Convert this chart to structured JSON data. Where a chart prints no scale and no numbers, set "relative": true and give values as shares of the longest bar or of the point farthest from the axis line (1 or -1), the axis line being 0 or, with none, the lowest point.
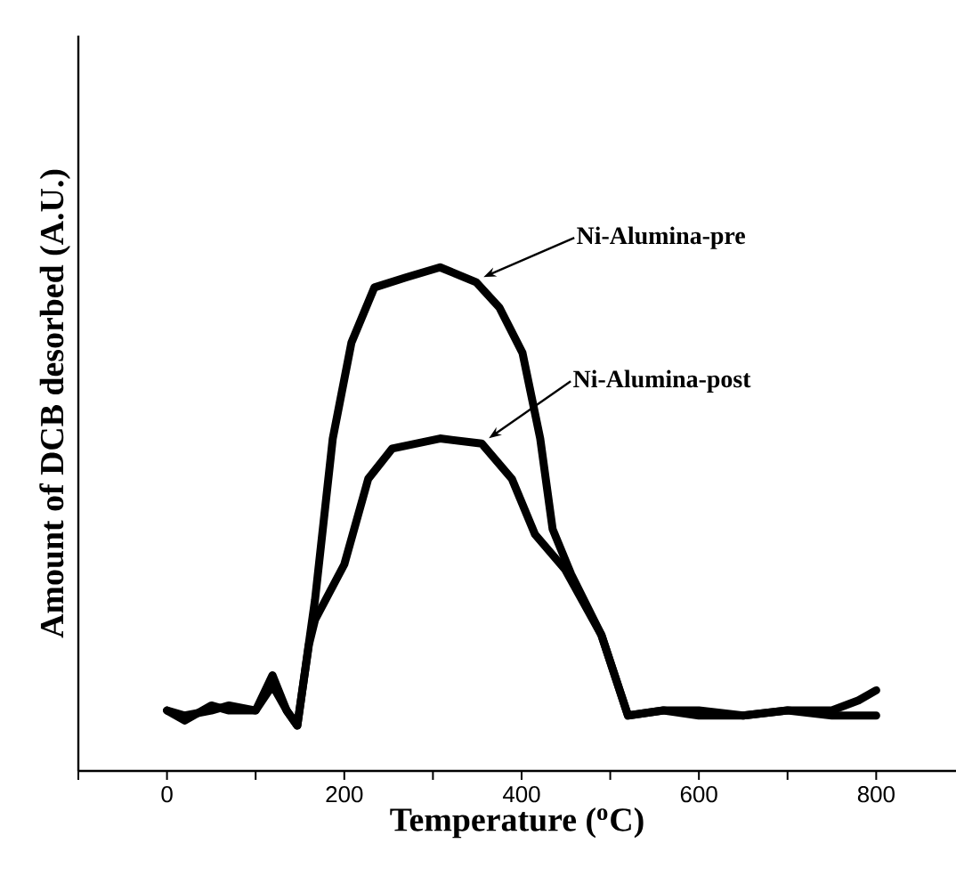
{
  "chart_data": {
    "type": "line",
    "xlabel": "Temperature ($^{o}$C)",
    "ylabel": "Amount of DCB desorbed (A.U.)",
    "relative": true,
    "marker": "none",
    "line_style": "solid",
    "xlim": [
      -100,
      890
    ],
    "xticks": [
      {
        "value": -100,
        "label": null
      },
      0,
      {
        "value": 100,
        "label": null
      },
      200,
      {
        "value": 300,
        "label": null
      },
      400,
      {
        "value": 500,
        "label": null
      },
      600,
      {
        "value": 700,
        "label": null
      },
      800
    ],
    "series": [
      {
        "name": "Ni-Alumina-pre",
        "color": "#000000",
        "x": [
          0,
          20,
          50,
          70,
          100,
          119,
          135,
          147,
          167,
          187,
          208,
          234,
          270,
          308,
          349,
          375,
          401,
          421,
          435,
          456,
          490,
          520,
          560,
          600,
          650,
          700,
          750,
          780,
          800
        ],
        "values": [
          0.12,
          0.1,
          0.13,
          0.12,
          0.12,
          0.19,
          0.12,
          0.09,
          0.34,
          0.66,
          0.85,
          0.96,
          0.98,
          1.0,
          0.97,
          0.92,
          0.83,
          0.66,
          0.48,
          0.39,
          0.27,
          0.11,
          0.12,
          0.12,
          0.11,
          0.12,
          0.12,
          0.14,
          0.16
        ]
      },
      {
        "name": "Ni-Alumina-post",
        "color": "#000000",
        "x": [
          0,
          20,
          50,
          70,
          100,
          119,
          135,
          147,
          160,
          167,
          200,
          227,
          254,
          308,
          355,
          389,
          415,
          449,
          490,
          520,
          560,
          600,
          650,
          700,
          750,
          780,
          800
        ],
        "values": [
          0.12,
          0.11,
          0.12,
          0.13,
          0.12,
          0.17,
          0.12,
          0.09,
          0.25,
          0.3,
          0.41,
          0.58,
          0.64,
          0.66,
          0.65,
          0.58,
          0.47,
          0.4,
          0.27,
          0.11,
          0.12,
          0.11,
          0.11,
          0.12,
          0.11,
          0.11,
          0.11
        ]
      }
    ]
  }
}
